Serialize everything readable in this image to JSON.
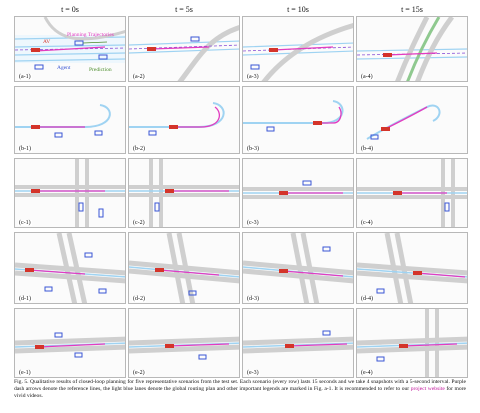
{
  "columns": [
    "t = 0s",
    "t = 5s",
    "t = 10s",
    "t = 15s"
  ],
  "rows": [
    {
      "id": "a",
      "labels": [
        "(a-1)",
        "(a-2)",
        "(a-3)",
        "(a-4)"
      ]
    },
    {
      "id": "b",
      "labels": [
        "(b-1)",
        "(b-2)",
        "(b-3)",
        "(b-4)"
      ]
    },
    {
      "id": "c",
      "labels": [
        "(c-1)",
        "(c-2)",
        "(c-3)",
        "(c-4)"
      ]
    },
    {
      "id": "d",
      "labels": [
        "(d-1)",
        "(d-2)",
        "(d-3)",
        "(d-4)"
      ]
    },
    {
      "id": "e",
      "labels": [
        "(e-1)",
        "(e-2)",
        "(e-3)",
        "(e-4)"
      ]
    }
  ],
  "legend": {
    "av": "AV",
    "planning": "Planning Trajectories",
    "agent": "Agent",
    "prediction": "Prediction"
  },
  "legend_colors": {
    "av": "#d4342a",
    "planning": "#e23cc0",
    "agent": "#3a56d4",
    "prediction": "#4a8c2a",
    "route": "#9fd3f2",
    "reference": "#8a4fd6"
  },
  "caption": {
    "part1": "Fig. 5.  Qualitative results of closed-loop planning for five representative scenarios from the test set. Each scenario (every row) lasts 15 seconds and we take 4 snapshots with a 5-second interval. Purple dash arrows denote the reference lines, the light blue lanes denote the global routing plan and other important legends are marked in Fig. a-1. It is recommended to refer to our ",
    "link": "project website",
    "part2": " for more vivid videos."
  }
}
